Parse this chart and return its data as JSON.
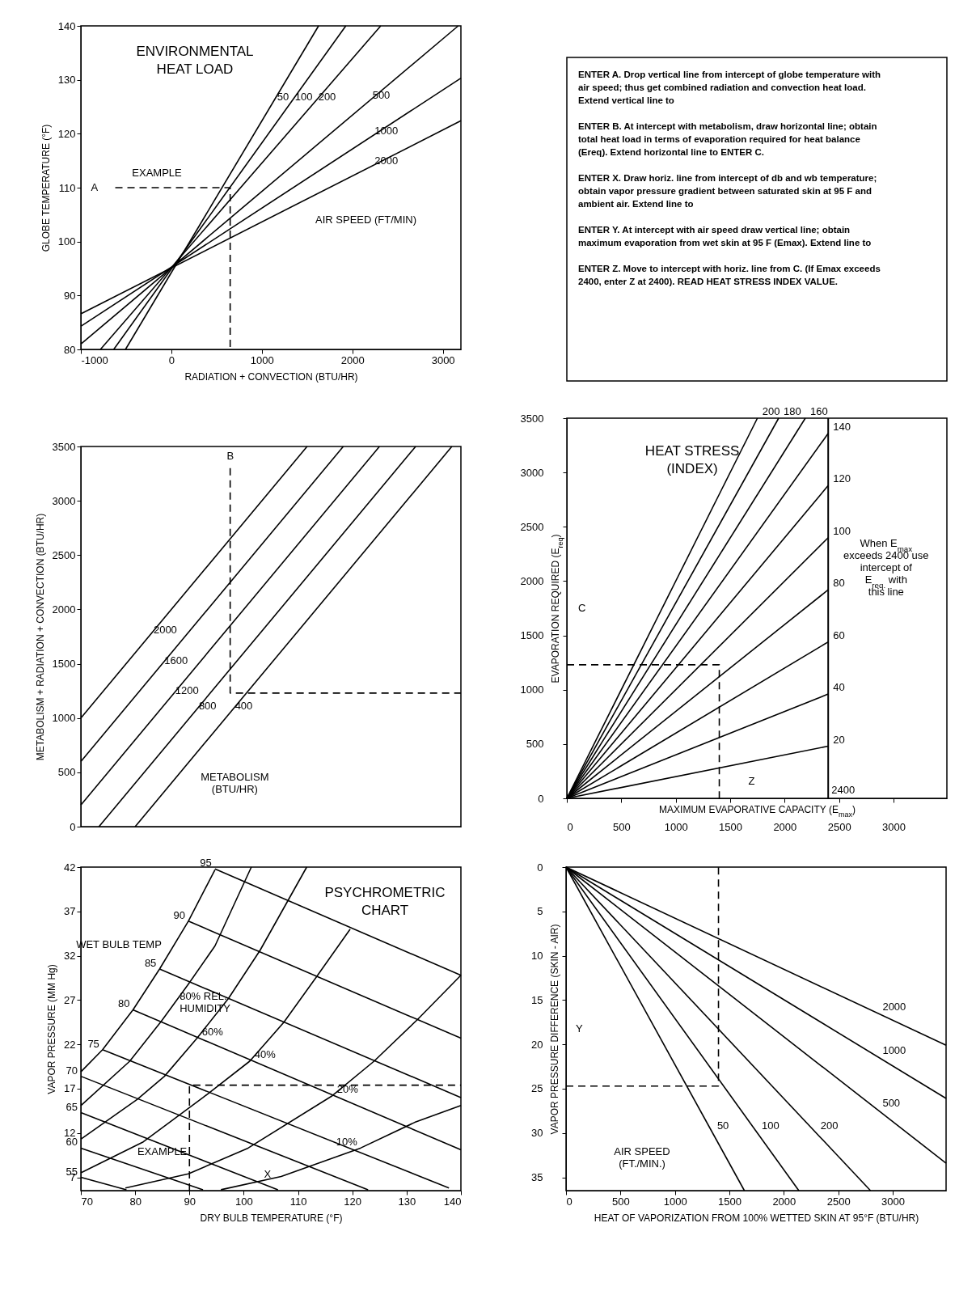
{
  "chart_data": [
    {
      "type": "line",
      "title": "ENVIRONMENTAL HEAT LOAD",
      "xlabel": "RADIATION + CONVECTION (BTU/HR)",
      "ylabel": "GLOBE TEMPERATURE (°F)",
      "xlim": [
        -1000,
        3200
      ],
      "ylim": [
        80,
        140
      ],
      "xticks": [
        -1000,
        0,
        1000,
        2000,
        3000
      ],
      "yticks": [
        80,
        90,
        100,
        110,
        120,
        130,
        140
      ],
      "series": [
        {
          "name": "50",
          "color": "#000000",
          "x": [
            -507,
            1627
          ],
          "values": [
            80,
            140
          ]
        },
        {
          "name": "100",
          "color": "#000000",
          "x": [
            -637,
            1928
          ],
          "values": [
            80,
            140
          ]
        },
        {
          "name": "200",
          "color": "#000000",
          "x": [
            -784,
            2314
          ],
          "values": [
            80,
            140
          ]
        },
        {
          "name": "500",
          "color": "#000000",
          "x": [
            -1000,
            3170
          ],
          "values": [
            81,
            140
          ]
        },
        {
          "name": "1000",
          "color": "#000000",
          "x": [
            -1000,
            3200
          ],
          "values": [
            84.3,
            130.3
          ]
        },
        {
          "name": "2000",
          "color": "#000000",
          "x": [
            -1000,
            3200
          ],
          "values": [
            86.6,
            122.4
          ]
        },
        {
          "color": "#000000",
          "line_style": "dashed",
          "x": [
            -620,
            650,
            650
          ],
          "values": [
            110,
            110,
            80
          ]
        }
      ],
      "annotations": [
        "A",
        "EXAMPLE",
        "AIR SPEED (FT/MIN)"
      ]
    },
    {
      "type": "other",
      "annotations": [
        "ENTER A. Drop vertical line from intercept of globe temperature with air speed; thus get combined radiation and convection heat load. Extend vertical line to",
        "ENTER B. At intercept with metabolism, draw horizontal line; obtain total heat load in terms of evaporation required for heat balance (Ereq). Extend horizontal line to ENTER C.",
        "ENTER X. Draw horiz. line from intercept of db and wb temperature; obtain vapor pressure gradient between saturated skin at 95 F and ambient air. Extend line to",
        "ENTER Y. At intercept with air speed draw vertical line; obtain maximum evaporation from wet skin at 95 F (Emax). Extend line to",
        "ENTER Z. Move to intercept with horiz. line from C. (If Emax exceeds 2400, enter Z at 2400). READ HEAT STRESS INDEX VALUE."
      ]
    },
    {
      "type": "line",
      "ylabel": "METABOLISM + RADIATION + CONVECTION (BTU/HR)",
      "xlim": [
        -1000,
        3200
      ],
      "ylim": [
        0,
        3500
      ],
      "yticks": [
        0,
        500,
        1000,
        1500,
        2000,
        2500,
        3000,
        3500
      ],
      "series": [
        {
          "name": "2000",
          "color": "#000000",
          "x": [
            -1000,
            1500
          ],
          "values": [
            1000,
            3500
          ]
        },
        {
          "name": "1600",
          "color": "#000000",
          "x": [
            -1000,
            1900
          ],
          "values": [
            600,
            3500
          ]
        },
        {
          "name": "1200",
          "color": "#000000",
          "x": [
            -1000,
            2300
          ],
          "values": [
            200,
            3500
          ]
        },
        {
          "name": "800",
          "color": "#000000",
          "x": [
            -800,
            2700
          ],
          "values": [
            0,
            3500
          ]
        },
        {
          "name": "400",
          "color": "#000000",
          "x": [
            -400,
            3100
          ],
          "values": [
            0,
            3500
          ]
        },
        {
          "color": "#000000",
          "line_style": "dashed",
          "x": [
            650,
            650,
            3200
          ],
          "values": [
            3300,
            1230,
            1230
          ]
        }
      ],
      "annotations": [
        "B",
        "METABOLISM (BTU/HR)"
      ]
    },
    {
      "type": "line",
      "title": "HEAT STRESS (INDEX)",
      "xlabel": "MAXIMUM EVAPORATIVE CAPACITY (E$_{max}$)",
      "ylabel": "EVAPORATION REQUIRED (E$_{req}$)",
      "xlim": [
        0,
        3490
      ],
      "ylim": [
        0,
        3500
      ],
      "xticks": [
        0,
        500,
        1000,
        1500,
        2000,
        2500,
        3000
      ],
      "yticks": [
        0,
        500,
        1000,
        1500,
        2000,
        2500,
        3000,
        3500
      ],
      "series": [
        {
          "name": "20",
          "color": "#000000",
          "x": [
            0,
            2400
          ],
          "values": [
            0,
            480
          ]
        },
        {
          "name": "40",
          "color": "#000000",
          "x": [
            0,
            2400
          ],
          "values": [
            0,
            960
          ]
        },
        {
          "name": "60",
          "color": "#000000",
          "x": [
            0,
            2400
          ],
          "values": [
            0,
            1440
          ]
        },
        {
          "name": "80",
          "color": "#000000",
          "x": [
            0,
            2400
          ],
          "values": [
            0,
            1920
          ]
        },
        {
          "name": "100",
          "color": "#000000",
          "x": [
            0,
            2400
          ],
          "values": [
            0,
            2400
          ]
        },
        {
          "name": "120",
          "color": "#000000",
          "x": [
            0,
            2400
          ],
          "values": [
            0,
            2880
          ]
        },
        {
          "name": "140",
          "color": "#000000",
          "x": [
            0,
            2400
          ],
          "values": [
            0,
            3360
          ]
        },
        {
          "name": "160",
          "color": "#000000",
          "x": [
            0,
            2190
          ],
          "values": [
            0,
            3500
          ]
        },
        {
          "name": "180",
          "color": "#000000",
          "x": [
            0,
            1945
          ],
          "values": [
            0,
            3500
          ]
        },
        {
          "name": "200",
          "color": "#000000",
          "x": [
            0,
            1750
          ],
          "values": [
            0,
            3500
          ]
        },
        {
          "color": "#000000",
          "line_style": "dashed",
          "x": [
            0,
            1400,
            1400
          ],
          "values": [
            1230,
            1230,
            0
          ]
        }
      ],
      "ref_lines": [
        {
          "axis": "x",
          "value": 2400,
          "label": "2400",
          "color": "#000000"
        }
      ],
      "annotations": [
        "C",
        "Z",
        "When E$_{max}$ exceeds 2400 use intercept of E$_{req.}$ with this line"
      ]
    },
    {
      "type": "line",
      "title": "PSYCHROMETRIC CHART",
      "xlabel": "DRY BULB TEMPERATURE (°F)",
      "ylabel": "VAPOR PRESSURE (MM Hg)",
      "xlim": [
        70,
        140
      ],
      "ylim": [
        5.5,
        42
      ],
      "xticks": [
        70,
        80,
        90,
        100,
        110,
        120,
        130,
        140
      ],
      "yticks": [
        7,
        12,
        17,
        22,
        27,
        32,
        37,
        42
      ],
      "series": [
        {
          "name": "95",
          "color": "#000000",
          "x": [
            94.7,
            140
          ],
          "values": [
            41.8,
            29.8
          ]
        },
        {
          "name": "90",
          "color": "#000000",
          "x": [
            89.8,
            140
          ],
          "values": [
            35.9,
            22.7
          ]
        },
        {
          "name": "85",
          "color": "#000000",
          "x": [
            84.5,
            140
          ],
          "values": [
            30.5,
            16.0
          ]
        },
        {
          "name": "80",
          "color": "#000000",
          "x": [
            79.6,
            140
          ],
          "values": [
            25.9,
            10.1
          ]
        },
        {
          "name": "75",
          "color": "#000000",
          "x": [
            74.0,
            137.8
          ],
          "values": [
            21.4,
            5.8
          ]
        },
        {
          "name": "70",
          "color": "#000000",
          "x": [
            70,
            122.9
          ],
          "values": [
            18.4,
            5.6
          ]
        },
        {
          "name": "65",
          "color": "#000000",
          "x": [
            70,
            106.3
          ],
          "values": [
            14.3,
            5.6
          ]
        },
        {
          "name": "60",
          "color": "#000000",
          "x": [
            70,
            92.5
          ],
          "values": [
            10.3,
            5.6
          ]
        },
        {
          "name": "55",
          "color": "#000000",
          "x": [
            70,
            78.4
          ],
          "values": [
            7.0,
            5.6
          ]
        },
        {
          "color": "#000000",
          "x": [
            70,
            74.0,
            79.6,
            84.5,
            89.8,
            94.7
          ],
          "values": [
            18.9,
            21.4,
            25.9,
            30.5,
            35.9,
            41.7
          ]
        },
        {
          "name": "80% REL. HUMIDITY",
          "color": "#000000",
          "x": [
            70,
            79,
            84.8,
            89.8,
            94.7,
            101.4
          ],
          "values": [
            15.1,
            20.1,
            24.6,
            28.8,
            33.1,
            42
          ]
        },
        {
          "name": "60%",
          "color": "#000000",
          "x": [
            70,
            80.4,
            85.4,
            91.4,
            97.2,
            103,
            111.6
          ],
          "values": [
            11.3,
            15.8,
            18.4,
            22.7,
            27.2,
            32.6,
            42
          ]
        },
        {
          "name": "40%",
          "color": "#000000",
          "x": [
            70,
            81.5,
            92.5,
            101.1,
            107.4,
            113.5,
            119.6
          ],
          "values": [
            7.5,
            11.0,
            16.0,
            20.1,
            24.5,
            29.7,
            35.0
          ]
        },
        {
          "name": "20%",
          "color": "#000000",
          "x": [
            78.2,
            89.8,
            100.8,
            116.3,
            124,
            132,
            140
          ],
          "values": [
            5.8,
            7.4,
            10.3,
            16.2,
            20.1,
            24.8,
            29.8
          ]
        },
        {
          "name": "10%",
          "color": "#000000",
          "x": [
            95.8,
            106.9,
            121.5,
            131.5,
            140
          ],
          "values": [
            5.6,
            7.1,
            10.3,
            13.2,
            15.1
          ]
        },
        {
          "color": "#000000",
          "line_style": "dashed",
          "x": [
            90,
            90,
            140
          ],
          "values": [
            5.5,
            17.4,
            17.4
          ]
        }
      ],
      "annotations": [
        "WET BULB TEMP",
        "X",
        "EXAMPLE"
      ]
    },
    {
      "type": "line",
      "xlabel": "HEAT OF VAPORIZATION FROM 100% WETTED SKIN AT 95°F (BTU/HR)",
      "ylabel": "VAPOR PRESSURE DIFFERENCE (SKIN - AIR)",
      "xlim": [
        0,
        3490
      ],
      "ylim": [
        36.5,
        0
      ],
      "xticks": [
        0,
        500,
        1000,
        1500,
        2000,
        2500,
        3000
      ],
      "yticks": [
        0,
        5,
        10,
        15,
        20,
        25,
        30,
        35
      ],
      "series": [
        {
          "name": "50",
          "color": "#000000",
          "x": [
            0,
            1638
          ],
          "values": [
            0,
            36.5
          ]
        },
        {
          "name": "100",
          "color": "#000000",
          "x": [
            0,
            2138
          ],
          "values": [
            0,
            36.5
          ]
        },
        {
          "name": "200",
          "color": "#000000",
          "x": [
            0,
            2796
          ],
          "values": [
            0,
            36.5
          ]
        },
        {
          "name": "500",
          "color": "#000000",
          "x": [
            0,
            3490
          ],
          "values": [
            0,
            33.4
          ]
        },
        {
          "name": "1000",
          "color": "#000000",
          "x": [
            0,
            3490
          ],
          "values": [
            0,
            26.1
          ]
        },
        {
          "name": "2000",
          "color": "#000000",
          "x": [
            0,
            3490
          ],
          "values": [
            0,
            20.1
          ]
        },
        {
          "color": "#000000",
          "line_style": "dashed",
          "x": [
            0,
            1400,
            1400
          ],
          "values": [
            24.7,
            24.7,
            0
          ]
        }
      ],
      "annotations": [
        "Y",
        "AIR SPEED (FT./MIN.)"
      ]
    }
  ]
}
